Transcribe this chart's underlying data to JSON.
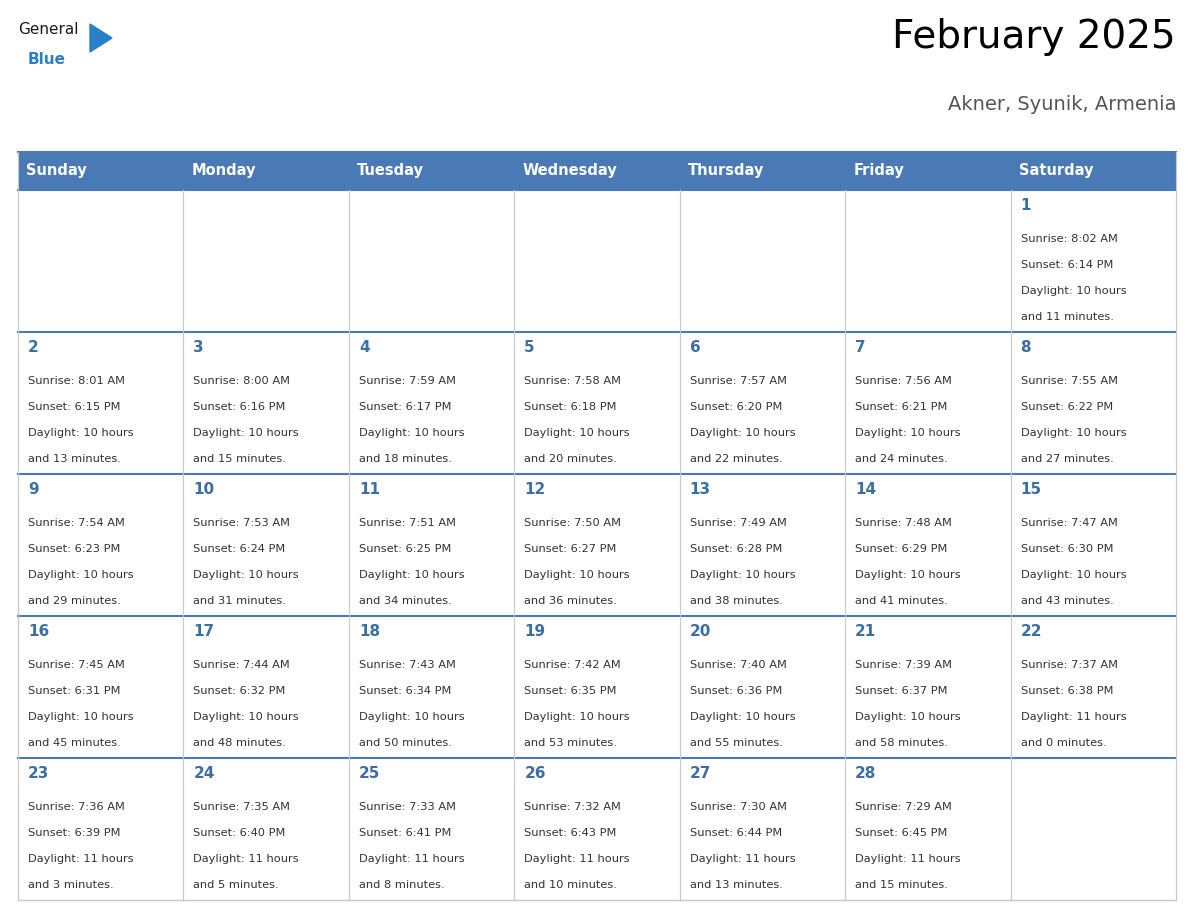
{
  "title": "February 2025",
  "subtitle": "Akner, Syunik, Armenia",
  "header_bg": "#4a7ab5",
  "header_text_color": "#ffffff",
  "cell_bg": "#ffffff",
  "row_separator_color": "#4a7ab5",
  "grid_color": "#c8c8c8",
  "day_headers": [
    "Sunday",
    "Monday",
    "Tuesday",
    "Wednesday",
    "Thursday",
    "Friday",
    "Saturday"
  ],
  "days": [
    {
      "day": 1,
      "col": 6,
      "row": 0,
      "sunrise": "8:02 AM",
      "sunset": "6:14 PM",
      "daylight": "10 hours and 11 minutes."
    },
    {
      "day": 2,
      "col": 0,
      "row": 1,
      "sunrise": "8:01 AM",
      "sunset": "6:15 PM",
      "daylight": "10 hours and 13 minutes."
    },
    {
      "day": 3,
      "col": 1,
      "row": 1,
      "sunrise": "8:00 AM",
      "sunset": "6:16 PM",
      "daylight": "10 hours and 15 minutes."
    },
    {
      "day": 4,
      "col": 2,
      "row": 1,
      "sunrise": "7:59 AM",
      "sunset": "6:17 PM",
      "daylight": "10 hours and 18 minutes."
    },
    {
      "day": 5,
      "col": 3,
      "row": 1,
      "sunrise": "7:58 AM",
      "sunset": "6:18 PM",
      "daylight": "10 hours and 20 minutes."
    },
    {
      "day": 6,
      "col": 4,
      "row": 1,
      "sunrise": "7:57 AM",
      "sunset": "6:20 PM",
      "daylight": "10 hours and 22 minutes."
    },
    {
      "day": 7,
      "col": 5,
      "row": 1,
      "sunrise": "7:56 AM",
      "sunset": "6:21 PM",
      "daylight": "10 hours and 24 minutes."
    },
    {
      "day": 8,
      "col": 6,
      "row": 1,
      "sunrise": "7:55 AM",
      "sunset": "6:22 PM",
      "daylight": "10 hours and 27 minutes."
    },
    {
      "day": 9,
      "col": 0,
      "row": 2,
      "sunrise": "7:54 AM",
      "sunset": "6:23 PM",
      "daylight": "10 hours and 29 minutes."
    },
    {
      "day": 10,
      "col": 1,
      "row": 2,
      "sunrise": "7:53 AM",
      "sunset": "6:24 PM",
      "daylight": "10 hours and 31 minutes."
    },
    {
      "day": 11,
      "col": 2,
      "row": 2,
      "sunrise": "7:51 AM",
      "sunset": "6:25 PM",
      "daylight": "10 hours and 34 minutes."
    },
    {
      "day": 12,
      "col": 3,
      "row": 2,
      "sunrise": "7:50 AM",
      "sunset": "6:27 PM",
      "daylight": "10 hours and 36 minutes."
    },
    {
      "day": 13,
      "col": 4,
      "row": 2,
      "sunrise": "7:49 AM",
      "sunset": "6:28 PM",
      "daylight": "10 hours and 38 minutes."
    },
    {
      "day": 14,
      "col": 5,
      "row": 2,
      "sunrise": "7:48 AM",
      "sunset": "6:29 PM",
      "daylight": "10 hours and 41 minutes."
    },
    {
      "day": 15,
      "col": 6,
      "row": 2,
      "sunrise": "7:47 AM",
      "sunset": "6:30 PM",
      "daylight": "10 hours and 43 minutes."
    },
    {
      "day": 16,
      "col": 0,
      "row": 3,
      "sunrise": "7:45 AM",
      "sunset": "6:31 PM",
      "daylight": "10 hours and 45 minutes."
    },
    {
      "day": 17,
      "col": 1,
      "row": 3,
      "sunrise": "7:44 AM",
      "sunset": "6:32 PM",
      "daylight": "10 hours and 48 minutes."
    },
    {
      "day": 18,
      "col": 2,
      "row": 3,
      "sunrise": "7:43 AM",
      "sunset": "6:34 PM",
      "daylight": "10 hours and 50 minutes."
    },
    {
      "day": 19,
      "col": 3,
      "row": 3,
      "sunrise": "7:42 AM",
      "sunset": "6:35 PM",
      "daylight": "10 hours and 53 minutes."
    },
    {
      "day": 20,
      "col": 4,
      "row": 3,
      "sunrise": "7:40 AM",
      "sunset": "6:36 PM",
      "daylight": "10 hours and 55 minutes."
    },
    {
      "day": 21,
      "col": 5,
      "row": 3,
      "sunrise": "7:39 AM",
      "sunset": "6:37 PM",
      "daylight": "10 hours and 58 minutes."
    },
    {
      "day": 22,
      "col": 6,
      "row": 3,
      "sunrise": "7:37 AM",
      "sunset": "6:38 PM",
      "daylight": "11 hours and 0 minutes."
    },
    {
      "day": 23,
      "col": 0,
      "row": 4,
      "sunrise": "7:36 AM",
      "sunset": "6:39 PM",
      "daylight": "11 hours and 3 minutes."
    },
    {
      "day": 24,
      "col": 1,
      "row": 4,
      "sunrise": "7:35 AM",
      "sunset": "6:40 PM",
      "daylight": "11 hours and 5 minutes."
    },
    {
      "day": 25,
      "col": 2,
      "row": 4,
      "sunrise": "7:33 AM",
      "sunset": "6:41 PM",
      "daylight": "11 hours and 8 minutes."
    },
    {
      "day": 26,
      "col": 3,
      "row": 4,
      "sunrise": "7:32 AM",
      "sunset": "6:43 PM",
      "daylight": "11 hours and 10 minutes."
    },
    {
      "day": 27,
      "col": 4,
      "row": 4,
      "sunrise": "7:30 AM",
      "sunset": "6:44 PM",
      "daylight": "11 hours and 13 minutes."
    },
    {
      "day": 28,
      "col": 5,
      "row": 4,
      "sunrise": "7:29 AM",
      "sunset": "6:45 PM",
      "daylight": "11 hours and 15 minutes."
    }
  ],
  "num_rows": 5,
  "num_cols": 7,
  "number_color": "#3a6ea5",
  "text_color": "#333333",
  "logo_general_color": "#1a1a1a",
  "logo_blue_color": "#2a7fc9",
  "logo_triangle_color": "#2a7fc9"
}
